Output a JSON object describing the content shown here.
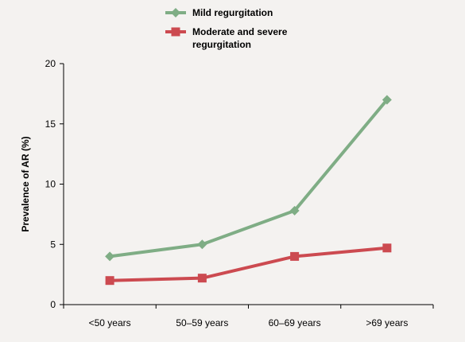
{
  "chart_data": {
    "type": "line",
    "categories": [
      "<50 years",
      "50–59 years",
      "60–69 years",
      ">69 years"
    ],
    "series": [
      {
        "name": "Mild regurgitation",
        "values": [
          4.0,
          5.0,
          7.8,
          17.0
        ],
        "color": "#7fad85",
        "marker": "diamond"
      },
      {
        "name": "Moderate and severe regurgitation",
        "name_lines": [
          "Moderate and severe",
          "regurgitation"
        ],
        "values": [
          2.0,
          2.2,
          4.0,
          4.7
        ],
        "color": "#cc4a50",
        "marker": "square"
      }
    ],
    "ylabel": "Prevalence of AR (%)",
    "xlabel": "",
    "ylim": [
      0,
      20
    ],
    "yticks": [
      0,
      5,
      10,
      15,
      20
    ],
    "grid": false,
    "legend_position": "top-center"
  }
}
